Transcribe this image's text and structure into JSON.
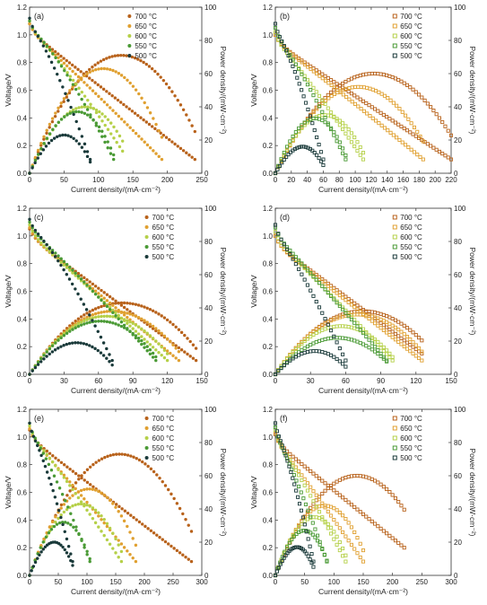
{
  "figure": {
    "x_axis_label": "Current density/(mA·cm⁻²)",
    "y_left_label": "Voltage/V",
    "y_right_label": "Power density/(mW·cm⁻²)",
    "colors": {
      "700": "#b8621b",
      "650": "#e0a030",
      "600": "#b5d048",
      "550": "#4a9a35",
      "500": "#1a3a3a"
    },
    "marker_styles": {
      "filled": "filled-circle",
      "hollow": "open-square"
    }
  },
  "chart_data": [
    {
      "panel": "(a)",
      "type": "line",
      "marker": "filled",
      "xlim": [
        0,
        250
      ],
      "xticks": [
        0,
        50,
        100,
        150,
        200,
        250
      ],
      "ylim": [
        0,
        1.2
      ],
      "yticks": [
        0,
        0.2,
        0.4,
        0.6,
        0.8,
        1.0,
        1.2
      ],
      "y2lim": [
        0,
        100
      ],
      "y2ticks": [
        0,
        20,
        40,
        60,
        80,
        100
      ],
      "xlabel": "Current density/(mA·cm⁻²)",
      "ylabel": "Voltage/V",
      "y2label": "Power density/(mW·cm⁻²)",
      "legend": "top-left",
      "series": [
        {
          "name": "700 °C",
          "temp": "700",
          "ocv": 1.08,
          "jmax": 240,
          "vend": 0.1,
          "shape": 1.0,
          "ppd": 71
        },
        {
          "name": "650 °C",
          "temp": "650",
          "ocv": 1.08,
          "jmax": 192,
          "vend": 0.1,
          "shape": 1.05,
          "ppd": 63
        },
        {
          "name": "600 °C",
          "temp": "600",
          "ocv": 1.1,
          "jmax": 135,
          "vend": 0.16,
          "shape": 1.15,
          "ppd": 40
        },
        {
          "name": "550 °C",
          "temp": "550",
          "ocv": 1.1,
          "jmax": 122,
          "vend": 0.1,
          "shape": 1.3,
          "ppd": 37
        },
        {
          "name": "500 °C",
          "temp": "500",
          "ocv": 1.12,
          "jmax": 88,
          "vend": 0.1,
          "shape": 1.3,
          "ppd": 23
        }
      ]
    },
    {
      "panel": "(b)",
      "type": "line",
      "marker": "hollow",
      "xlim": [
        0,
        220
      ],
      "xticks": [
        0,
        20,
        40,
        60,
        80,
        100,
        120,
        140,
        160,
        180,
        200,
        220
      ],
      "ylim": [
        0,
        1.2
      ],
      "yticks": [
        0,
        0.2,
        0.4,
        0.6,
        0.8,
        1.0,
        1.2
      ],
      "y2lim": [
        0,
        100
      ],
      "y2ticks": [
        0,
        20,
        40,
        60,
        80,
        100
      ],
      "xlabel": "Current density/(mA·cm⁻²)",
      "ylabel": "Voltage/V",
      "y2label": "Power density/(mW·cm⁻²)",
      "legend": "top-right",
      "series": [
        {
          "name": "700 °C",
          "temp": "700",
          "ocv": 1.0,
          "jmax": 220,
          "vend": 0.1,
          "shape": 1.0,
          "ppd": 60
        },
        {
          "name": "650 °C",
          "temp": "650",
          "ocv": 1.0,
          "jmax": 185,
          "vend": 0.1,
          "shape": 1.05,
          "ppd": 52
        },
        {
          "name": "600 °C",
          "temp": "600",
          "ocv": 1.02,
          "jmax": 110,
          "vend": 0.1,
          "shape": 1.1,
          "ppd": 35
        },
        {
          "name": "550 °C",
          "temp": "550",
          "ocv": 1.05,
          "jmax": 88,
          "vend": 0.1,
          "shape": 1.2,
          "ppd": 33
        },
        {
          "name": "500 °C",
          "temp": "500",
          "ocv": 1.08,
          "jmax": 60,
          "vend": 0.1,
          "shape": 1.3,
          "ppd": 16
        }
      ]
    },
    {
      "panel": "(c)",
      "type": "line",
      "marker": "filled",
      "xlim": [
        0,
        150
      ],
      "xticks": [
        0,
        30,
        60,
        90,
        120,
        150
      ],
      "ylim": [
        0,
        1.2
      ],
      "yticks": [
        0,
        0.2,
        0.4,
        0.6,
        0.8,
        1.0,
        1.2
      ],
      "y2lim": [
        0,
        100
      ],
      "y2ticks": [
        0,
        20,
        40,
        60,
        80,
        100
      ],
      "xlabel": "Current density/(mA·cm⁻²)",
      "ylabel": "Voltage/V",
      "y2label": "Power density/(mW·cm⁻²)",
      "legend": "top-right",
      "series": [
        {
          "name": "700 °C",
          "temp": "700",
          "ocv": 1.05,
          "jmax": 145,
          "vend": 0.1,
          "shape": 1.0,
          "ppd": 43
        },
        {
          "name": "650 °C",
          "temp": "650",
          "ocv": 1.06,
          "jmax": 130,
          "vend": 0.1,
          "shape": 1.0,
          "ppd": 38
        },
        {
          "name": "600 °C",
          "temp": "600",
          "ocv": 1.08,
          "jmax": 120,
          "vend": 0.1,
          "shape": 1.0,
          "ppd": 35
        },
        {
          "name": "550 °C",
          "temp": "550",
          "ocv": 1.1,
          "jmax": 110,
          "vend": 0.1,
          "shape": 1.1,
          "ppd": 32
        },
        {
          "name": "500 °C",
          "temp": "500",
          "ocv": 1.12,
          "jmax": 72,
          "vend": 0.1,
          "shape": 1.3,
          "ppd": 19
        }
      ]
    },
    {
      "panel": "(d)",
      "type": "line",
      "marker": "hollow",
      "xlim": [
        0,
        150
      ],
      "xticks": [
        0,
        30,
        60,
        90,
        120,
        150
      ],
      "ylim": [
        0,
        1.2
      ],
      "yticks": [
        0,
        0.2,
        0.4,
        0.6,
        0.8,
        1.0,
        1.2
      ],
      "y2lim": [
        0,
        100
      ],
      "y2ticks": [
        0,
        20,
        40,
        60,
        80,
        100
      ],
      "xlabel": "Current density/(mA·cm⁻²)",
      "ylabel": "Voltage/V",
      "y2label": "Power density/(mW·cm⁻²)",
      "legend": "top-right",
      "series": [
        {
          "name": "700 °C",
          "temp": "700",
          "ocv": 1.0,
          "jmax": 125,
          "vend": 0.15,
          "shape": 1.0,
          "ppd": 38
        },
        {
          "name": "650 °C",
          "temp": "650",
          "ocv": 1.0,
          "jmax": 125,
          "vend": 0.1,
          "shape": 1.0,
          "ppd": 36
        },
        {
          "name": "600 °C",
          "temp": "600",
          "ocv": 1.03,
          "jmax": 100,
          "vend": 0.1,
          "shape": 1.05,
          "ppd": 29
        },
        {
          "name": "550 °C",
          "temp": "550",
          "ocv": 1.06,
          "jmax": 95,
          "vend": 0.1,
          "shape": 1.05,
          "ppd": 22
        },
        {
          "name": "500 °C",
          "temp": "500",
          "ocv": 1.08,
          "jmax": 60,
          "vend": 0.1,
          "shape": 1.15,
          "ppd": 14
        }
      ]
    },
    {
      "panel": "(e)",
      "type": "line",
      "marker": "filled",
      "xlim": [
        0,
        300
      ],
      "xticks": [
        0,
        50,
        100,
        150,
        200,
        250,
        300
      ],
      "ylim": [
        0,
        1.2
      ],
      "yticks": [
        0,
        0.2,
        0.4,
        0.6,
        0.8,
        1.0,
        1.2
      ],
      "y2lim": [
        0,
        100
      ],
      "y2ticks": [
        0,
        20,
        40,
        60,
        80,
        100
      ],
      "xlabel": "Current density/(mA·cm⁻²)",
      "ylabel": "Voltage/V",
      "y2label": "Power density/(mW·cm⁻²)",
      "legend": "top-right",
      "series": [
        {
          "name": "700 °C",
          "temp": "700",
          "ocv": 1.05,
          "jmax": 282,
          "vend": 0.1,
          "shape": 1.0,
          "ppd": 73
        },
        {
          "name": "650 °C",
          "temp": "650",
          "ocv": 1.06,
          "jmax": 185,
          "vend": 0.1,
          "shape": 1.05,
          "ppd": 52
        },
        {
          "name": "600 °C",
          "temp": "600",
          "ocv": 1.08,
          "jmax": 160,
          "vend": 0.1,
          "shape": 1.1,
          "ppd": 43
        },
        {
          "name": "550 °C",
          "temp": "550",
          "ocv": 1.1,
          "jmax": 105,
          "vend": 0.1,
          "shape": 1.2,
          "ppd": 32
        },
        {
          "name": "500 °C",
          "temp": "500",
          "ocv": 1.1,
          "jmax": 75,
          "vend": 0.1,
          "shape": 1.3,
          "ppd": 20
        }
      ]
    },
    {
      "panel": "(f)",
      "type": "line",
      "marker": "hollow",
      "xlim": [
        0,
        300
      ],
      "xticks": [
        0,
        50,
        100,
        150,
        200,
        250,
        300
      ],
      "ylim": [
        0,
        1.2
      ],
      "yticks": [
        0,
        0.2,
        0.4,
        0.6,
        0.8,
        1.0,
        1.2
      ],
      "y2lim": [
        0,
        100
      ],
      "y2ticks": [
        0,
        20,
        40,
        60,
        80,
        100
      ],
      "xlabel": "Current density/(mA·cm⁻²)",
      "ylabel": "Voltage/V",
      "y2label": "Power density/(mW·cm⁻²)",
      "legend": "top-right",
      "series": [
        {
          "name": "700 °C",
          "temp": "700",
          "ocv": 1.02,
          "jmax": 220,
          "vend": 0.2,
          "shape": 1.0,
          "ppd": 60
        },
        {
          "name": "650 °C",
          "temp": "650",
          "ocv": 1.03,
          "jmax": 150,
          "vend": 0.1,
          "shape": 1.05,
          "ppd": 42
        },
        {
          "name": "600 °C",
          "temp": "600",
          "ocv": 1.05,
          "jmax": 120,
          "vend": 0.1,
          "shape": 1.1,
          "ppd": 35
        },
        {
          "name": "550 °C",
          "temp": "550",
          "ocv": 1.07,
          "jmax": 88,
          "vend": 0.1,
          "shape": 1.15,
          "ppd": 27
        },
        {
          "name": "500 °C",
          "temp": "500",
          "ocv": 1.1,
          "jmax": 65,
          "vend": 0.1,
          "shape": 1.3,
          "ppd": 17
        }
      ]
    }
  ]
}
